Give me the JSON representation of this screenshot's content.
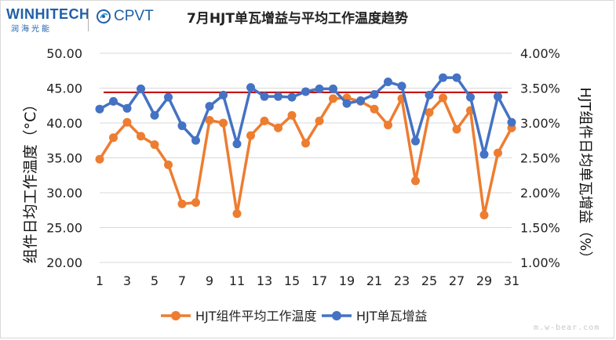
{
  "logos": {
    "left_brand": "WINHITECH",
    "left_brand_sub": "润海光能",
    "right_brand": "CPVT"
  },
  "watermark": "m.w-bear.com",
  "chart_data": {
    "type": "line",
    "title": "7月HJT单瓦增益与平均工作温度趋势",
    "x": [
      1,
      2,
      3,
      4,
      5,
      6,
      7,
      8,
      9,
      10,
      11,
      12,
      13,
      14,
      15,
      16,
      17,
      18,
      19,
      20,
      21,
      22,
      23,
      24,
      25,
      26,
      27,
      28,
      29,
      30,
      31
    ],
    "x_ticks": [
      "1",
      "3",
      "5",
      "7",
      "9",
      "11",
      "13",
      "15",
      "17",
      "19",
      "21",
      "23",
      "25",
      "27",
      "29",
      "31"
    ],
    "ylabel_left": "组件日均工作温度（°C）",
    "ylabel_right": "HJT组件日均单瓦增益（%）",
    "ylim_left": [
      20,
      50
    ],
    "ylim_right": [
      1.0,
      4.0
    ],
    "yticks_left": [
      "20.00",
      "25.00",
      "30.00",
      "35.00",
      "40.00",
      "45.00",
      "50.00"
    ],
    "yticks_right": [
      "1.00%",
      "1.50%",
      "2.00%",
      "2.50%",
      "3.00%",
      "3.50%",
      "4.00%"
    ],
    "grid": true,
    "legend_position": "bottom",
    "reference_line": {
      "axis": "right",
      "value": 3.44,
      "color": "#c00000"
    },
    "series": [
      {
        "name": "HJT组件平均工作温度",
        "axis": "left",
        "color": "#ed7d31",
        "values": [
          34.8,
          37.9,
          40.1,
          38.1,
          36.9,
          34.0,
          28.4,
          28.6,
          40.4,
          40.0,
          27.0,
          38.2,
          40.3,
          39.3,
          41.1,
          37.1,
          40.3,
          43.5,
          43.6,
          43.1,
          42.0,
          39.7,
          43.5,
          31.7,
          41.5,
          43.6,
          39.1,
          41.8,
          26.8,
          35.7,
          39.3
        ]
      },
      {
        "name": "HJT单瓦增益",
        "axis": "right",
        "color": "#4472c4",
        "values": [
          3.2,
          3.31,
          3.21,
          3.49,
          3.11,
          3.37,
          2.96,
          2.75,
          3.24,
          3.4,
          2.7,
          3.51,
          3.38,
          3.38,
          3.37,
          3.45,
          3.49,
          3.49,
          3.28,
          3.32,
          3.41,
          3.59,
          3.53,
          2.74,
          3.4,
          3.65,
          3.65,
          3.37,
          2.55,
          3.38,
          3.01
        ]
      }
    ]
  }
}
